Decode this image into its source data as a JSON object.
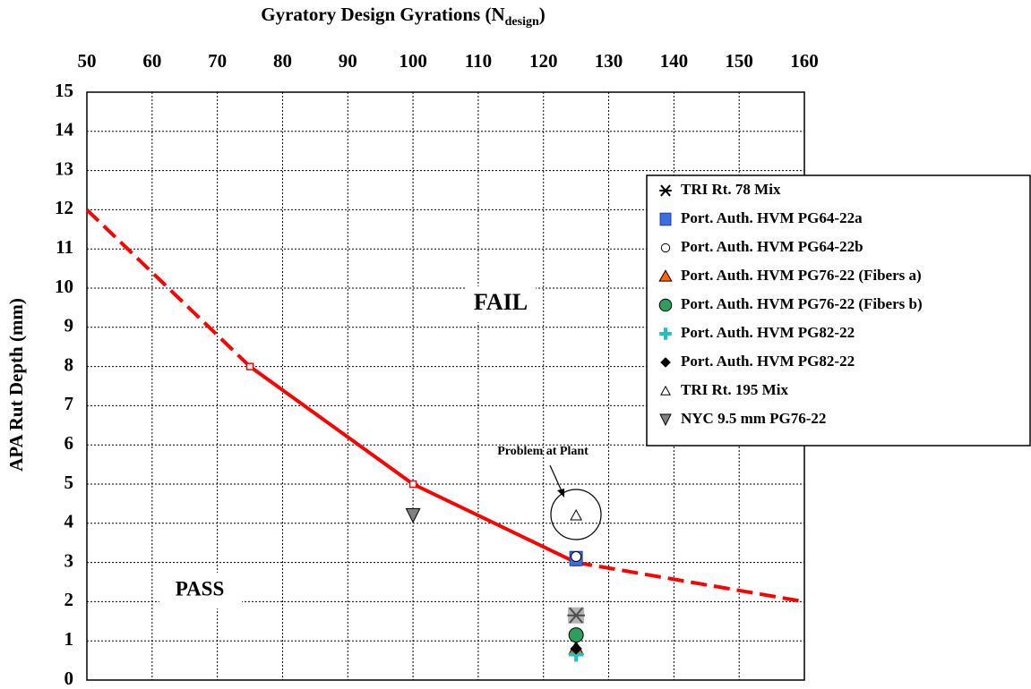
{
  "chart_data": {
    "type": "scatter",
    "x_label": "Gyratory Design Gyrations (N",
    "x_label_sub": "design",
    "x_label_end": ")",
    "y_label": "APA Rut Depth (mm)",
    "xlim": [
      50,
      160
    ],
    "xticks": [
      50,
      60,
      70,
      80,
      90,
      100,
      110,
      120,
      130,
      140,
      150,
      160
    ],
    "ylim": [
      0,
      15
    ],
    "yticks": [
      0,
      1,
      2,
      3,
      4,
      5,
      6,
      7,
      8,
      9,
      10,
      11,
      12,
      13,
      14,
      15
    ],
    "grid": true,
    "criteria": {
      "color": "#ff0000",
      "x": [
        50,
        75,
        100,
        125,
        160
      ],
      "values": [
        12,
        8,
        5,
        3,
        2
      ],
      "segment_styles": [
        "dashed",
        "solid",
        "solid",
        "dashed"
      ]
    },
    "series": [
      {
        "name": "TRI Rt. 78 Mix",
        "marker": "asterisk",
        "color": "#808080",
        "x": [
          125
        ],
        "values": [
          1.65
        ]
      },
      {
        "name": "Port. Auth. HVM PG64-22a",
        "marker": "square",
        "color": "#3b6fe0",
        "x": [
          125
        ],
        "values": [
          3.1
        ]
      },
      {
        "name": "Port. Auth. HVM PG64-22b",
        "marker": "circle",
        "color": "#ffffff",
        "x": [
          125
        ],
        "values": [
          3.15
        ]
      },
      {
        "name": "Port. Auth. HVM PG76-22 (Fibers a)",
        "marker": "triangle",
        "color": "#ff6600",
        "x": [
          125
        ],
        "values": [
          0.8
        ]
      },
      {
        "name": "Port. Auth. HVM PG76-22 (Fibers b)",
        "marker": "bigcircle",
        "color": "#2e9e5e",
        "x": [
          125
        ],
        "values": [
          1.15
        ]
      },
      {
        "name": "Port. Auth. HVM PG82-22",
        "marker": "plus",
        "color": "#22c0c0",
        "x": [
          125
        ],
        "values": [
          0.65
        ]
      },
      {
        "name": "Port. Auth. HVM PG82-22",
        "marker": "diamond",
        "color": "#000000",
        "x": [
          125
        ],
        "values": [
          0.8
        ]
      },
      {
        "name": "TRI Rt. 195 Mix",
        "marker": "smalltriangle",
        "color": "#ffffff",
        "x": [
          125
        ],
        "values": [
          4.2
        ]
      },
      {
        "name": "NYC 9.5 mm PG76-22",
        "marker": "downtriangle",
        "color": "#808080",
        "x": [
          100
        ],
        "values": [
          4.2
        ]
      }
    ],
    "annotations": [
      "FAIL",
      "PASS",
      "Problem at Plant"
    ]
  }
}
